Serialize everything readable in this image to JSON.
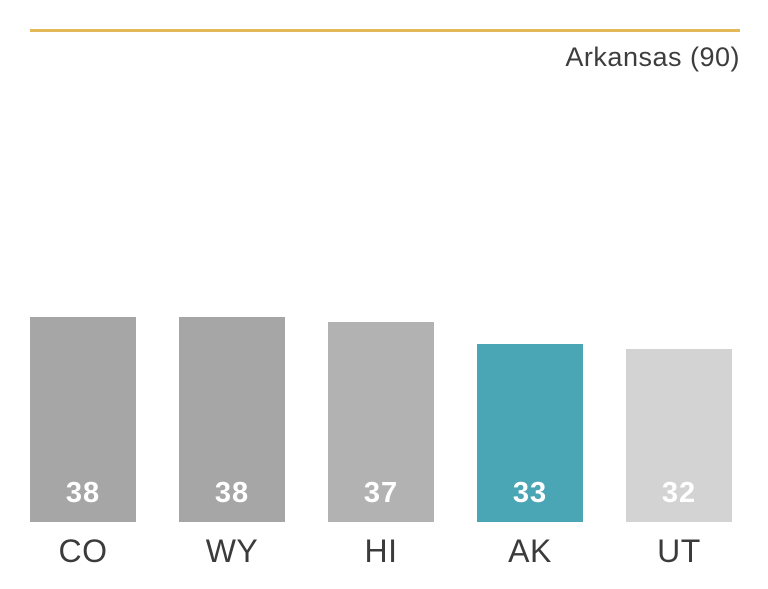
{
  "header": {
    "title": "Arkansas (90)"
  },
  "colors": {
    "accent_line": "#E3B858",
    "value_text": "#FFFFFF",
    "label_text": "#3B3B3B",
    "title_text": "#3D3D3D",
    "highlight": "#4AA5B5"
  },
  "chart_data": {
    "type": "bar",
    "title": "Arkansas (90)",
    "categories": [
      "CO",
      "WY",
      "HI",
      "AK",
      "UT"
    ],
    "values": [
      38,
      38,
      37,
      33,
      32
    ],
    "bar_colors": [
      "#A6A6A6",
      "#A6A6A6",
      "#B2B2B2",
      "#4AA5B5",
      "#D3D3D3"
    ],
    "highlight_category": "AK",
    "value_labels_inside_bars": true,
    "xlabel": "",
    "ylabel": "",
    "ylim": [
      0,
      38
    ],
    "grid": false,
    "legend": "none"
  }
}
